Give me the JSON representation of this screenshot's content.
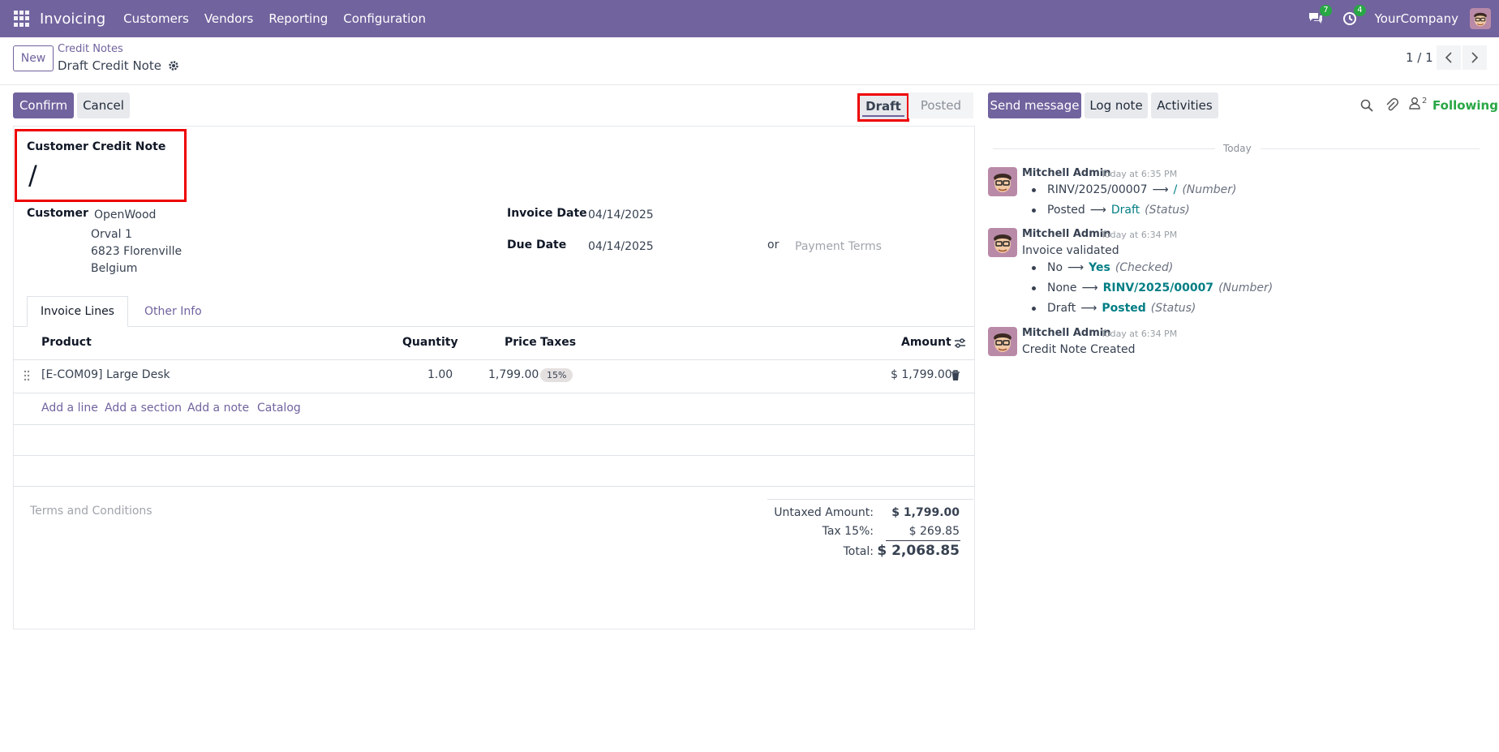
{
  "navbar": {
    "brand": "Invoicing",
    "menu": [
      "Customers",
      "Vendors",
      "Reporting",
      "Configuration"
    ],
    "messages_count": "7",
    "activities_count": "4",
    "company": "YourCompany"
  },
  "control": {
    "new_label": "New",
    "breadcrumb_parent": "Credit Notes",
    "breadcrumb_current": "Draft Credit Note",
    "pager": "1 / 1"
  },
  "actions": {
    "confirm": "Confirm",
    "cancel": "Cancel",
    "status_draft": "Draft",
    "status_posted": "Posted",
    "send_message": "Send message",
    "log_note": "Log note",
    "activities": "Activities",
    "followers_count": "2",
    "following": "Following"
  },
  "form": {
    "title_label": "Customer Credit Note",
    "title_value": "/",
    "customer_label": "Customer",
    "customer_name": "OpenWood",
    "address_line1": "Orval 1",
    "address_line2": "6823 Florenville",
    "address_line3": "Belgium",
    "invoice_date_label": "Invoice Date",
    "invoice_date": "04/14/2025",
    "due_date_label": "Due Date",
    "due_date": "04/14/2025",
    "or_text": "or",
    "payment_terms_placeholder": "Payment Terms"
  },
  "tabs": [
    "Invoice Lines",
    "Other Info"
  ],
  "lines": {
    "headers": {
      "product": "Product",
      "quantity": "Quantity",
      "price": "Price",
      "taxes": "Taxes",
      "amount": "Amount"
    },
    "rows": [
      {
        "product": "[E-COM09] Large Desk",
        "quantity": "1.00",
        "price": "1,799.00",
        "tax": "15%",
        "amount": "$ 1,799.00"
      }
    ],
    "add_line": "Add a line",
    "add_section": "Add a section",
    "add_note": "Add a note",
    "catalog": "Catalog"
  },
  "terms_placeholder": "Terms and Conditions",
  "totals": {
    "untaxed_label": "Untaxed Amount:",
    "untaxed_value": "$ 1,799.00",
    "tax_label": "Tax 15%:",
    "tax_value": "$ 269.85",
    "total_label": "Total:",
    "total_value": "$ 2,068.85"
  },
  "chatter": {
    "date_separator": "Today",
    "messages": [
      {
        "author": "Mitchell Admin",
        "time": "Today at 6:35 PM",
        "tracking": [
          {
            "old": "RINV/2025/00007",
            "new": "/",
            "field": "(Number)"
          },
          {
            "old": "Posted",
            "new": "Draft",
            "field": "(Status)"
          }
        ]
      },
      {
        "author": "Mitchell Admin",
        "time": "Today at 6:34 PM",
        "text": "Invoice validated",
        "tracking": [
          {
            "old": "No",
            "new": "Yes",
            "field": "(Checked)"
          },
          {
            "old": "None",
            "new": "RINV/2025/00007",
            "field": "(Number)"
          },
          {
            "old": "Draft",
            "new": "Posted",
            "field": "(Status)"
          }
        ]
      },
      {
        "author": "Mitchell Admin",
        "time": "Today at 6:34 PM",
        "text": "Credit Note Created"
      }
    ]
  },
  "colors": {
    "brand": "#71639e",
    "highlight": "#ee0000",
    "link_teal": "#017e84",
    "success": "#28a745"
  }
}
